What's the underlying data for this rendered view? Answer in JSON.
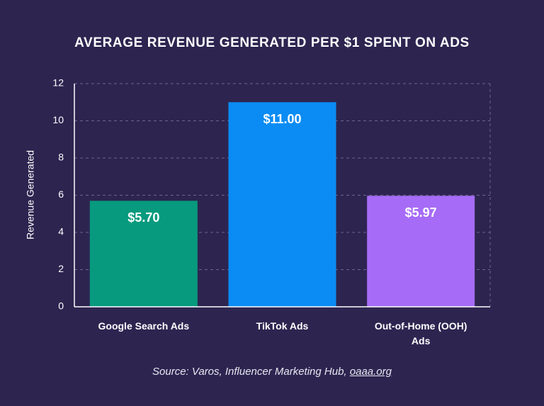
{
  "chart_data": {
    "type": "bar",
    "title": "AVERAGE REVENUE GENERATED PER $1 SPENT ON ADS",
    "y_label": "Revenue Generated",
    "categories": [
      "Google Search Ads",
      "TikTok Ads",
      "Out-of-Home (OOH) Ads"
    ],
    "values": [
      5.7,
      11,
      5.97
    ],
    "value_labels": [
      "$5.70",
      "$11.00",
      "$5.97"
    ],
    "colors": [
      "#079a7e",
      "#0a8cf4",
      "#a66cf7"
    ],
    "ylim": [
      0,
      12
    ],
    "yticks": [
      0,
      2,
      4,
      6,
      8,
      10,
      12
    ],
    "grid": true,
    "source": {
      "text": "Source: Varos, Influencer Marketing Hub,",
      "link": "oaaa.org"
    }
  }
}
